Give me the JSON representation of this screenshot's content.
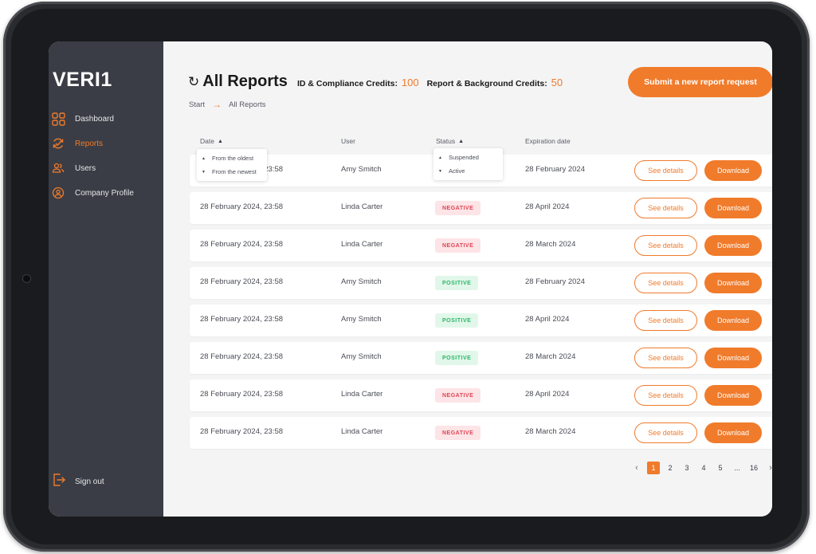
{
  "app": {
    "logo": "VERI1"
  },
  "sidebar": {
    "items": [
      {
        "label": "Dashboard",
        "icon": "grid-icon",
        "active": false
      },
      {
        "label": "Reports",
        "icon": "reports-cycle-icon",
        "active": true
      },
      {
        "label": "Users",
        "icon": "users-icon",
        "active": false
      },
      {
        "label": "Company Profile",
        "icon": "company-profile-icon",
        "active": false
      }
    ],
    "signout": "Sign out"
  },
  "header": {
    "title": "All Reports",
    "credits_id_label": "ID & Compliance Credits:",
    "credits_id_value": "100",
    "credits_report_label": "Report & Background Credits:",
    "credits_report_value": "50",
    "submit_label": "Submit a new report request"
  },
  "breadcrumb": {
    "start": "Start",
    "current": "All Reports"
  },
  "table": {
    "headers": {
      "date": "Date",
      "user": "User",
      "status": "Status",
      "expiration": "Expiration date"
    },
    "date_sort_options": [
      "From the oldest",
      "From the newest"
    ],
    "status_filter_options": [
      "Suspended",
      "Active"
    ],
    "see_details_label": "See details",
    "download_label": "Download",
    "rows": [
      {
        "date": "28 February 2024, 23:58",
        "user": "Amy Smitch",
        "status": "",
        "expiration": "28 February 2024"
      },
      {
        "date": "28 February 2024, 23:58",
        "user": "Linda Carter",
        "status": "NEGATIVE",
        "expiration": "28 April 2024"
      },
      {
        "date": "28 February 2024, 23:58",
        "user": "Linda Carter",
        "status": "NEGATIVE",
        "expiration": "28 March 2024"
      },
      {
        "date": "28 February 2024, 23:58",
        "user": "Amy Smitch",
        "status": "POSITIVE",
        "expiration": "28 February 2024"
      },
      {
        "date": "28 February 2024, 23:58",
        "user": "Amy Smitch",
        "status": "POSITIVE",
        "expiration": "28 April 2024"
      },
      {
        "date": "28 February 2024, 23:58",
        "user": "Amy Smitch",
        "status": "POSITIVE",
        "expiration": "28 March 2024"
      },
      {
        "date": "28 February 2024, 23:58",
        "user": "Linda Carter",
        "status": "NEGATIVE",
        "expiration": "28 April 2024"
      },
      {
        "date": "28 February 2024, 23:58",
        "user": "Linda Carter",
        "status": "NEGATIVE",
        "expiration": "28 March 2024"
      }
    ]
  },
  "pagination": {
    "pages": [
      "1",
      "2",
      "3",
      "4",
      "5",
      "...",
      "16"
    ],
    "current": "1"
  },
  "colors": {
    "accent": "#f07b2b",
    "sidebar": "#3a3d45",
    "negative": "#e04455",
    "positive": "#2db768"
  }
}
